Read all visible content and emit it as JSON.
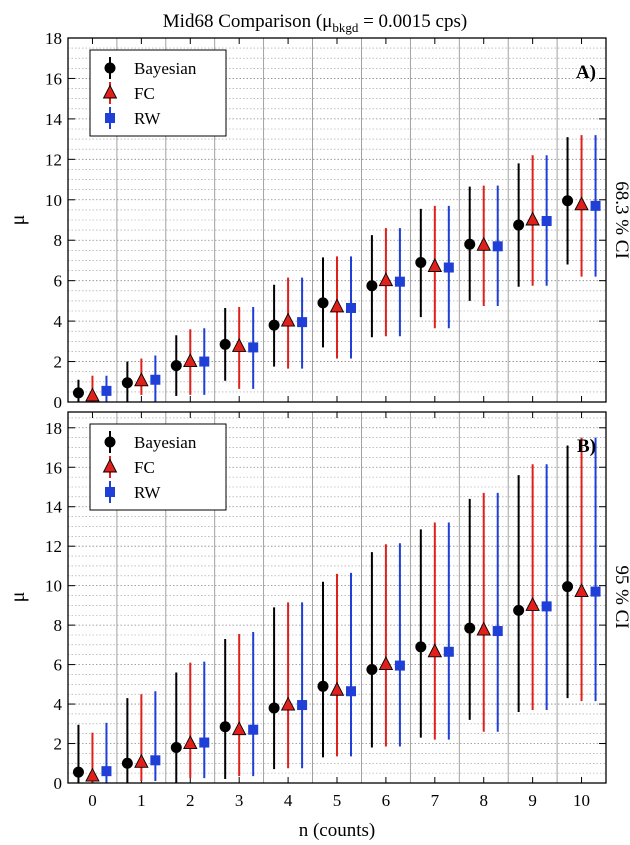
{
  "figure": {
    "title_prefix": "Mid68 Comparison (μ",
    "title_sub": "bkgd",
    "title_suffix": " = 0.0015 cps)",
    "xlabel": "n (counts)"
  },
  "colors": {
    "Bayesian": "#000000",
    "FC": "#e0201b",
    "RW": "#1f3fd6"
  },
  "chart_data": [
    {
      "type": "scatter",
      "panel_label": "A)",
      "side_label": "68.3 % CI",
      "ylabel": "μ",
      "ylim": [
        0,
        18
      ],
      "yticks": [
        0,
        2,
        4,
        6,
        8,
        10,
        12,
        14,
        16,
        18
      ],
      "xlim": [
        -0.5,
        10.5
      ],
      "xticks": [
        0,
        1,
        2,
        3,
        4,
        5,
        6,
        7,
        8,
        9,
        10
      ],
      "grid": true,
      "legend_position": "top-left",
      "series": [
        {
          "name": "Bayesian",
          "marker": "circle",
          "x": [
            0,
            1,
            2,
            3,
            4,
            5,
            6,
            7,
            8,
            9,
            10
          ],
          "y": [
            0.45,
            0.95,
            1.8,
            2.85,
            3.8,
            4.9,
            5.75,
            6.9,
            7.8,
            8.75,
            9.95
          ],
          "low": [
            0.0,
            0.0,
            0.3,
            1.05,
            1.75,
            2.7,
            3.2,
            4.2,
            5.0,
            5.7,
            6.8
          ],
          "high": [
            1.1,
            2.0,
            3.3,
            4.65,
            5.8,
            7.15,
            8.25,
            9.55,
            10.65,
            11.8,
            13.1
          ]
        },
        {
          "name": "FC",
          "marker": "triangle",
          "x": [
            0,
            1,
            2,
            3,
            4,
            5,
            6,
            7,
            8,
            9,
            10
          ],
          "y": [
            0.3,
            1.05,
            2.0,
            2.75,
            4.0,
            4.7,
            6.0,
            6.7,
            7.75,
            9.0,
            9.75
          ],
          "low": [
            0.0,
            0.35,
            0.35,
            0.65,
            1.65,
            2.15,
            3.25,
            3.65,
            4.75,
            5.75,
            6.2
          ],
          "high": [
            1.3,
            2.15,
            3.6,
            4.7,
            6.15,
            7.2,
            8.6,
            9.7,
            10.7,
            12.2,
            13.2
          ]
        },
        {
          "name": "RW",
          "marker": "square",
          "x": [
            0,
            1,
            2,
            3,
            4,
            5,
            6,
            7,
            8,
            9,
            10
          ],
          "y": [
            0.55,
            1.1,
            2.0,
            2.7,
            3.95,
            4.65,
            5.95,
            6.65,
            7.7,
            8.95,
            9.7
          ],
          "low": [
            0.0,
            0.0,
            0.35,
            0.65,
            1.65,
            2.15,
            3.25,
            3.65,
            4.75,
            5.75,
            6.2
          ],
          "high": [
            1.3,
            2.3,
            3.65,
            4.7,
            6.15,
            7.2,
            8.6,
            9.7,
            10.7,
            12.2,
            13.2
          ]
        }
      ]
    },
    {
      "type": "scatter",
      "panel_label": "B)",
      "side_label": "95 % CI",
      "ylabel": "μ",
      "ylim": [
        0,
        18.8
      ],
      "yticks": [
        0,
        2,
        4,
        6,
        8,
        10,
        12,
        14,
        16,
        18
      ],
      "xlim": [
        -0.5,
        10.5
      ],
      "xticks": [
        0,
        1,
        2,
        3,
        4,
        5,
        6,
        7,
        8,
        9,
        10
      ],
      "grid": true,
      "legend_position": "top-left",
      "series": [
        {
          "name": "Bayesian",
          "marker": "circle",
          "x": [
            0,
            1,
            2,
            3,
            4,
            5,
            6,
            7,
            8,
            9,
            10
          ],
          "y": [
            0.55,
            1.0,
            1.8,
            2.85,
            3.8,
            4.9,
            5.75,
            6.9,
            7.85,
            8.75,
            9.95
          ],
          "low": [
            0.0,
            0.0,
            0.0,
            0.2,
            0.7,
            1.3,
            1.8,
            2.3,
            3.2,
            3.6,
            4.3
          ],
          "high": [
            2.95,
            4.3,
            5.6,
            7.3,
            8.9,
            10.2,
            11.7,
            12.85,
            14.4,
            15.6,
            17.1
          ]
        },
        {
          "name": "FC",
          "marker": "triangle",
          "x": [
            0,
            1,
            2,
            3,
            4,
            5,
            6,
            7,
            8,
            9,
            10
          ],
          "y": [
            0.35,
            1.05,
            2.0,
            2.7,
            3.95,
            4.7,
            6.0,
            6.65,
            7.75,
            9.0,
            9.7
          ],
          "low": [
            0.0,
            0.1,
            0.25,
            0.35,
            0.75,
            1.35,
            1.85,
            2.2,
            2.6,
            3.7,
            4.15
          ],
          "high": [
            2.55,
            4.5,
            6.1,
            7.55,
            9.15,
            10.6,
            12.1,
            13.2,
            14.7,
            16.15,
            17.5
          ]
        },
        {
          "name": "RW",
          "marker": "square",
          "x": [
            0,
            1,
            2,
            3,
            4,
            5,
            6,
            7,
            8,
            9,
            10
          ],
          "y": [
            0.6,
            1.15,
            2.05,
            2.7,
            3.95,
            4.65,
            5.95,
            6.65,
            7.7,
            8.95,
            9.7
          ],
          "low": [
            0.0,
            0.1,
            0.25,
            0.35,
            0.75,
            1.35,
            1.85,
            2.2,
            2.6,
            3.7,
            4.15
          ],
          "high": [
            3.05,
            4.65,
            6.15,
            7.65,
            9.15,
            10.65,
            12.15,
            13.2,
            14.7,
            16.15,
            17.5
          ]
        }
      ]
    }
  ]
}
